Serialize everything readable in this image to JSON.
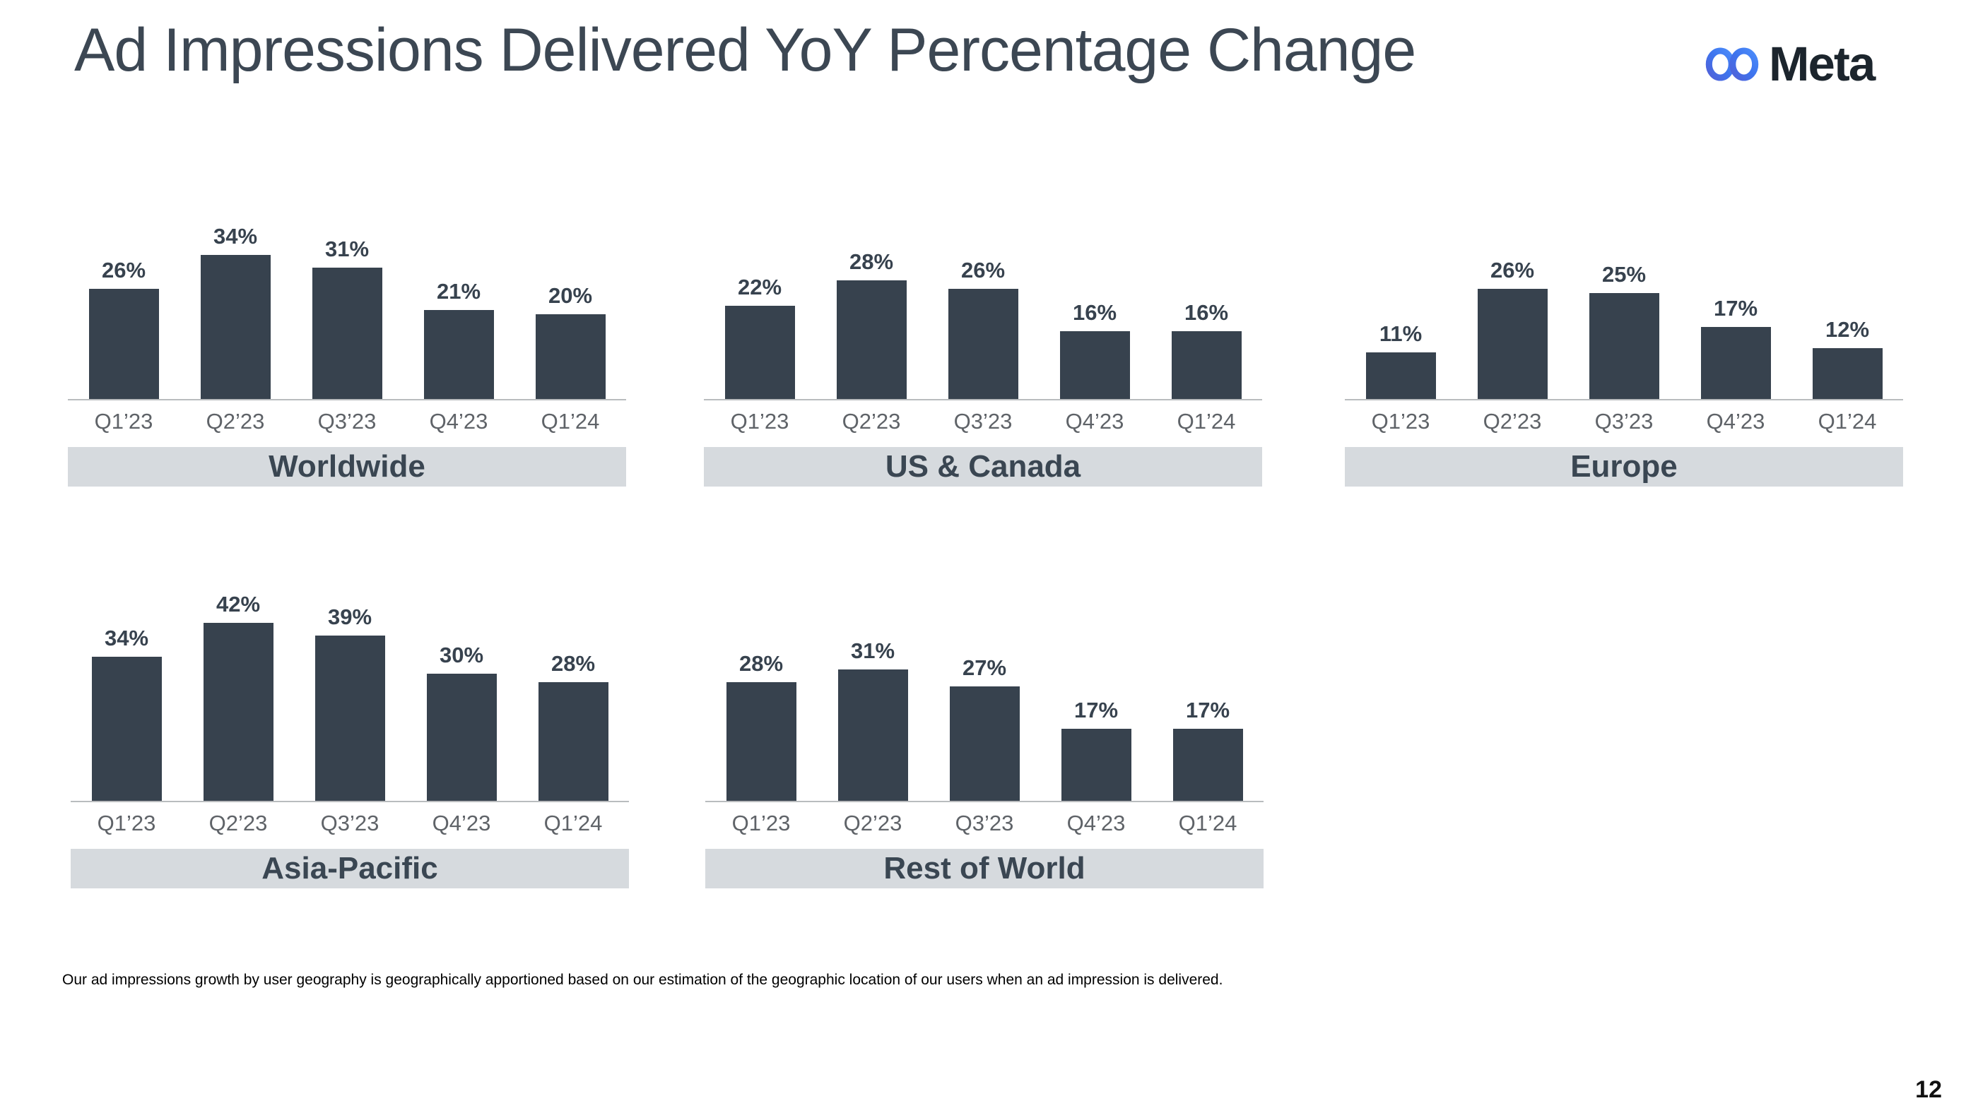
{
  "slide": {
    "title": "Ad Impressions Delivered YoY Percentage Change",
    "footnote": "Our ad impressions growth by user geography is geographically apportioned based on our estimation of the geographic location of our users when an ad impression is delivered.",
    "page_number": "12",
    "logo": {
      "text": "Meta",
      "icon": "meta-infinity-icon"
    }
  },
  "colors": {
    "bar": "#37424E",
    "title": "#3C4753",
    "tick": "#5F6368",
    "axis": "#B9BCBE",
    "banner_bg": "#D6DADE",
    "banner_text": "#3A4652",
    "logo_text": "#1C252D",
    "logo_gradient": [
      "#5161D8",
      "#3E74EE",
      "#4B8CFA"
    ]
  },
  "chart_data": [
    {
      "type": "bar",
      "title": "Worldwide",
      "categories": [
        "Q1’23",
        "Q2’23",
        "Q3’23",
        "Q4’23",
        "Q1’24"
      ],
      "values": [
        26,
        34,
        31,
        21,
        20
      ],
      "unit": "%",
      "ylim": [
        0,
        46
      ],
      "grid": false,
      "legend": "none",
      "xlabel": "",
      "ylabel": ""
    },
    {
      "type": "bar",
      "title": "US & Canada",
      "categories": [
        "Q1’23",
        "Q2’23",
        "Q3’23",
        "Q4’23",
        "Q1’24"
      ],
      "values": [
        22,
        28,
        26,
        16,
        16
      ],
      "unit": "%",
      "ylim": [
        0,
        46
      ],
      "grid": false,
      "legend": "none",
      "xlabel": "",
      "ylabel": ""
    },
    {
      "type": "bar",
      "title": "Europe",
      "categories": [
        "Q1’23",
        "Q2’23",
        "Q3’23",
        "Q4’23",
        "Q1’24"
      ],
      "values": [
        11,
        26,
        25,
        17,
        12
      ],
      "unit": "%",
      "ylim": [
        0,
        46
      ],
      "grid": false,
      "legend": "none",
      "xlabel": "",
      "ylabel": ""
    },
    {
      "type": "bar",
      "title": "Asia-Pacific",
      "categories": [
        "Q1’23",
        "Q2’23",
        "Q3’23",
        "Q4’23",
        "Q1’24"
      ],
      "values": [
        34,
        42,
        39,
        30,
        28
      ],
      "unit": "%",
      "ylim": [
        0,
        46
      ],
      "grid": false,
      "legend": "none",
      "xlabel": "",
      "ylabel": ""
    },
    {
      "type": "bar",
      "title": "Rest of World",
      "categories": [
        "Q1’23",
        "Q2’23",
        "Q3’23",
        "Q4’23",
        "Q1’24"
      ],
      "values": [
        28,
        31,
        27,
        17,
        17
      ],
      "unit": "%",
      "ylim": [
        0,
        46
      ],
      "grid": false,
      "legend": "none",
      "xlabel": "",
      "ylabel": ""
    }
  ]
}
